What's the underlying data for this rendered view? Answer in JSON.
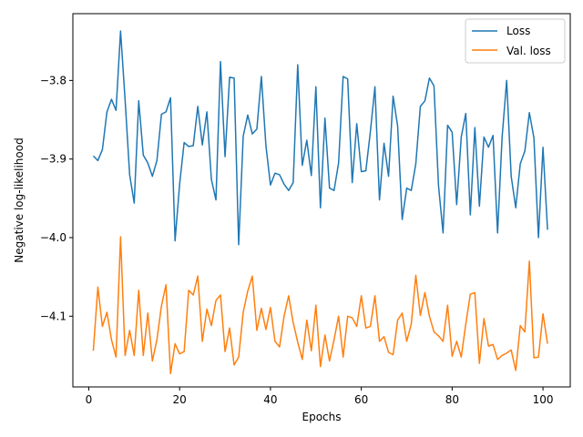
{
  "chart_data": {
    "type": "line",
    "title": "",
    "xlabel": "Epochs",
    "ylabel": "Negative log-likelihood",
    "xlim": [
      -3.5,
      106
    ],
    "ylim": [
      -4.19,
      -3.715
    ],
    "xticks": [
      0,
      20,
      40,
      60,
      80,
      100
    ],
    "xtick_labels": [
      "0",
      "20",
      "40",
      "60",
      "80",
      "100"
    ],
    "yticks": [
      -3.8,
      -3.9,
      -4.0,
      -4.1
    ],
    "ytick_labels": [
      "−3.8",
      "−3.9",
      "−4.0",
      "−4.1"
    ],
    "grid": false,
    "legend_position": "top-right",
    "series": [
      {
        "name": "Loss",
        "color": "#1f77b4",
        "x": [
          1,
          2,
          3,
          4,
          5,
          6,
          7,
          8,
          9,
          10,
          11,
          12,
          13,
          14,
          15,
          16,
          17,
          18,
          19,
          20,
          21,
          22,
          23,
          24,
          25,
          26,
          27,
          28,
          29,
          30,
          31,
          32,
          33,
          34,
          35,
          36,
          37,
          38,
          39,
          40,
          41,
          42,
          43,
          44,
          45,
          46,
          47,
          48,
          49,
          50,
          51,
          52,
          53,
          54,
          55,
          56,
          57,
          58,
          59,
          60,
          61,
          62,
          63,
          64,
          65,
          66,
          67,
          68,
          69,
          70,
          71,
          72,
          73,
          74,
          75,
          76,
          77,
          78,
          79,
          80,
          81,
          82,
          83,
          84,
          85,
          86,
          87,
          88,
          89,
          90,
          91,
          92,
          93,
          94,
          95,
          96,
          97,
          98,
          99,
          100,
          101
        ],
        "values": [
          -3.896,
          -3.902,
          -3.888,
          -3.84,
          -3.824,
          -3.838,
          -3.737,
          -3.825,
          -3.92,
          -3.956,
          -3.826,
          -3.895,
          -3.905,
          -3.922,
          -3.902,
          -3.843,
          -3.84,
          -3.822,
          -4.004,
          -3.932,
          -3.879,
          -3.884,
          -3.883,
          -3.833,
          -3.882,
          -3.84,
          -3.926,
          -3.952,
          -3.776,
          -3.897,
          -3.796,
          -3.797,
          -4.009,
          -3.871,
          -3.844,
          -3.868,
          -3.862,
          -3.795,
          -3.883,
          -3.933,
          -3.918,
          -3.92,
          -3.932,
          -3.94,
          -3.93,
          -3.78,
          -3.908,
          -3.876,
          -3.921,
          -3.808,
          -3.962,
          -3.848,
          -3.937,
          -3.94,
          -3.905,
          -3.795,
          -3.798,
          -3.93,
          -3.855,
          -3.916,
          -3.915,
          -3.865,
          -3.808,
          -3.952,
          -3.88,
          -3.922,
          -3.82,
          -3.858,
          -3.977,
          -3.937,
          -3.94,
          -3.906,
          -3.833,
          -3.826,
          -3.797,
          -3.807,
          -3.934,
          -3.994,
          -3.857,
          -3.866,
          -3.958,
          -3.872,
          -3.842,
          -3.971,
          -3.86,
          -3.96,
          -3.872,
          -3.885,
          -3.87,
          -3.994,
          -3.872,
          -3.8,
          -3.922,
          -3.962,
          -3.906,
          -3.89,
          -3.841,
          -3.873,
          -4.0,
          -3.885,
          -3.99
        ]
      },
      {
        "name": "Val. loss",
        "color": "#ff7f0e",
        "x": [
          1,
          2,
          3,
          4,
          5,
          6,
          7,
          8,
          9,
          10,
          11,
          12,
          13,
          14,
          15,
          16,
          17,
          18,
          19,
          20,
          21,
          22,
          23,
          24,
          25,
          26,
          27,
          28,
          29,
          30,
          31,
          32,
          33,
          34,
          35,
          36,
          37,
          38,
          39,
          40,
          41,
          42,
          43,
          44,
          45,
          46,
          47,
          48,
          49,
          50,
          51,
          52,
          53,
          54,
          55,
          56,
          57,
          58,
          59,
          60,
          61,
          62,
          63,
          64,
          65,
          66,
          67,
          68,
          69,
          70,
          71,
          72,
          73,
          74,
          75,
          76,
          77,
          78,
          79,
          80,
          81,
          82,
          83,
          84,
          85,
          86,
          87,
          88,
          89,
          90,
          91,
          92,
          93,
          94,
          95,
          96,
          97,
          98,
          99,
          100,
          101
        ],
        "values": [
          -4.144,
          -4.063,
          -4.113,
          -4.095,
          -4.13,
          -4.152,
          -3.999,
          -4.15,
          -4.118,
          -4.15,
          -4.067,
          -4.15,
          -4.096,
          -4.157,
          -4.13,
          -4.087,
          -4.06,
          -4.173,
          -4.135,
          -4.148,
          -4.145,
          -4.067,
          -4.073,
          -4.049,
          -4.132,
          -4.091,
          -4.112,
          -4.08,
          -4.073,
          -4.145,
          -4.115,
          -4.162,
          -4.152,
          -4.095,
          -4.068,
          -4.049,
          -4.118,
          -4.09,
          -4.117,
          -4.089,
          -4.132,
          -4.139,
          -4.1,
          -4.074,
          -4.108,
          -4.133,
          -4.155,
          -4.105,
          -4.144,
          -4.086,
          -4.164,
          -4.124,
          -4.157,
          -4.13,
          -4.1,
          -4.152,
          -4.1,
          -4.102,
          -4.113,
          -4.074,
          -4.115,
          -4.113,
          -4.074,
          -4.132,
          -4.126,
          -4.146,
          -4.149,
          -4.105,
          -4.096,
          -4.132,
          -4.11,
          -4.048,
          -4.099,
          -4.07,
          -4.1,
          -4.12,
          -4.125,
          -4.132,
          -4.086,
          -4.151,
          -4.132,
          -4.152,
          -4.11,
          -4.072,
          -4.07,
          -4.16,
          -4.103,
          -4.138,
          -4.136,
          -4.155,
          -4.15,
          -4.147,
          -4.143,
          -4.169,
          -4.112,
          -4.12,
          -4.03,
          -4.153,
          -4.152,
          -4.097,
          -4.135
        ]
      }
    ]
  }
}
